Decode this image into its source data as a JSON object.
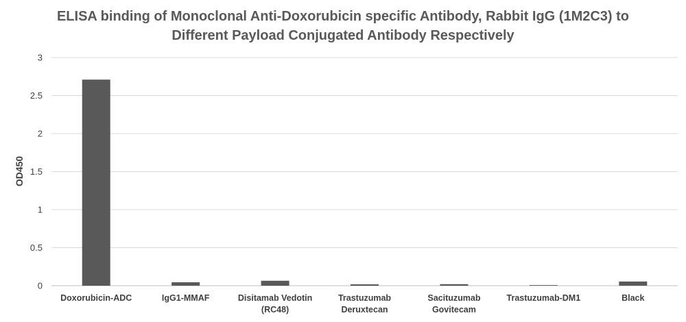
{
  "chart_data": {
    "type": "bar",
    "title_lines": [
      "ELISA binding of Monoclonal Anti-Doxorubicin specific Antibody, Rabbit IgG (1M2C3) to",
      "Different Payload Conjugated Antibody Respectively"
    ],
    "ylabel": "OD450",
    "xlabel": "",
    "ylim": [
      0,
      3
    ],
    "yticks": [
      "0",
      "0.5",
      "1",
      "1.5",
      "2",
      "2.5",
      "3"
    ],
    "grid": true,
    "categories": [
      [
        "Doxorubicin-ADC"
      ],
      [
        "IgG1-MMAF"
      ],
      [
        "Disitamab Vedotin",
        "(RC48)"
      ],
      [
        "Trastuzumab",
        "Deruxtecan"
      ],
      [
        "Sacituzumab",
        "Govitecam"
      ],
      [
        "Trastuzumab-DM1"
      ],
      [
        "Black"
      ]
    ],
    "values": [
      2.71,
      0.045,
      0.065,
      0.018,
      0.02,
      0.008,
      0.055
    ],
    "bar_color": "#595959"
  }
}
